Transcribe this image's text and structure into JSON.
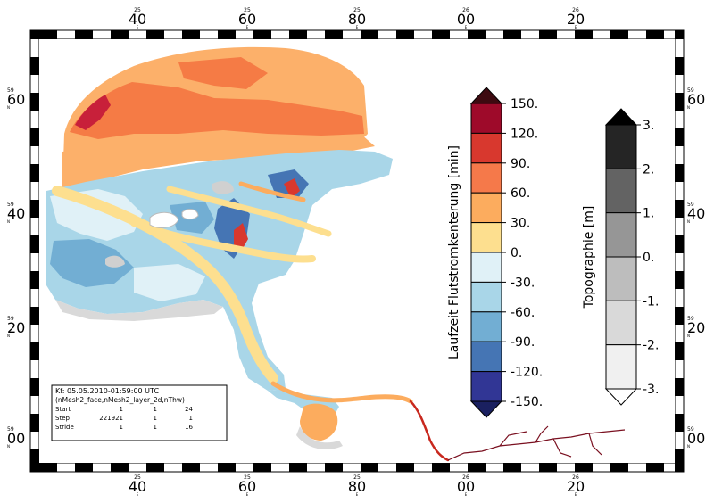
{
  "map": {
    "top_x_ticks": [
      {
        "small": "25",
        "sub": "E",
        "main": "40"
      },
      {
        "small": "25",
        "sub": "E",
        "main": "60"
      },
      {
        "small": "25",
        "sub": "E",
        "main": "80"
      },
      {
        "small": "26",
        "sub": "E",
        "main": "00"
      },
      {
        "small": "26",
        "sub": "E",
        "main": "20"
      }
    ],
    "bottom_x_ticks": [
      {
        "small": "25",
        "sub": "E",
        "main": "40"
      },
      {
        "small": "25",
        "sub": "E",
        "main": "60"
      },
      {
        "small": "25",
        "sub": "E",
        "main": "80"
      },
      {
        "small": "26",
        "sub": "E",
        "main": "00"
      },
      {
        "small": "26",
        "sub": "E",
        "main": "20"
      }
    ],
    "left_y_ticks": [
      {
        "small": "59",
        "sub": "N",
        "main": "60"
      },
      {
        "small": "59",
        "sub": "N",
        "main": "40"
      },
      {
        "small": "59",
        "sub": "N",
        "main": "20"
      },
      {
        "small": "59",
        "sub": "N",
        "main": "00"
      }
    ],
    "right_y_ticks": [
      {
        "small": "59",
        "sub": "N",
        "main": "60"
      },
      {
        "small": "59",
        "sub": "N",
        "main": "40"
      },
      {
        "small": "59",
        "sub": "N",
        "main": "20"
      },
      {
        "small": "59",
        "sub": "N",
        "main": "00"
      }
    ]
  },
  "legend_flut": {
    "title": "Laufzeit Flutstromkenterung [min]",
    "labels": [
      "150.",
      "120.",
      "90.",
      "60.",
      "30.",
      "0.",
      "-30.",
      "-60.",
      "-90.",
      "-120.",
      "-150."
    ],
    "colors": [
      "#3d0a10",
      "#9e0a2a",
      "#d8382e",
      "#f5794a",
      "#fcac5e",
      "#fddf8f",
      "#e0f1f7",
      "#a9d6e8",
      "#72aed3",
      "#4575b4",
      "#313695",
      "#1a2060"
    ]
  },
  "legend_topo": {
    "title": "Topographie [m]",
    "labels": [
      "3.",
      "2.",
      "1.",
      "0.",
      "-1.",
      "-2.",
      "-3."
    ],
    "colors": [
      "#000000",
      "#252525",
      "#636363",
      "#969696",
      "#bdbdbd",
      "#d9d9d9",
      "#f0f0f0",
      "#ffffff"
    ]
  },
  "info_box": {
    "line1": "Kf: 05.05.2010-01:59:00 UTC",
    "line2": "(nMesh2_face,nMesh2_layer_2d,nThw)",
    "start": [
      "Start",
      "1",
      "1",
      "24"
    ],
    "step": [
      "Step",
      "221921",
      "1",
      "1"
    ],
    "stride": [
      "Stride",
      "1",
      "1",
      "16"
    ]
  }
}
